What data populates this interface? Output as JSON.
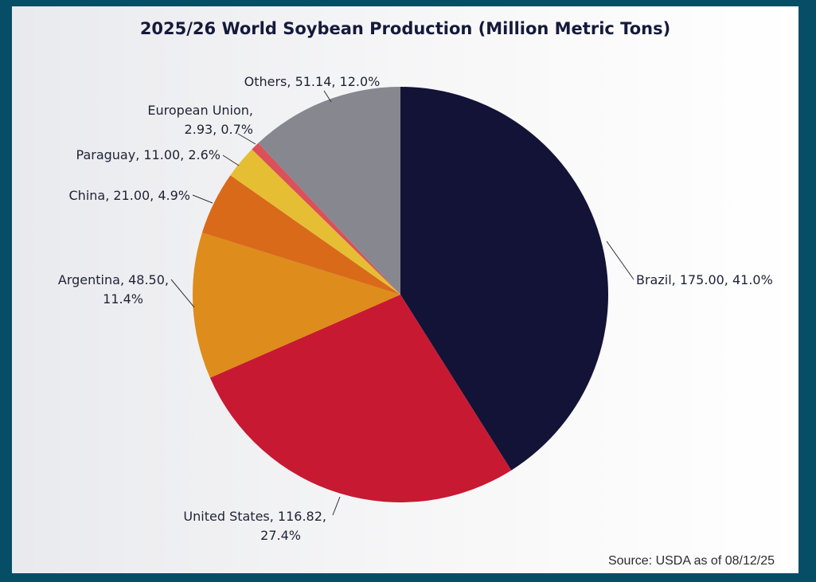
{
  "chart_data": {
    "type": "pie",
    "title": "2025/26 World Soybean Production (Million Metric Tons)",
    "source": "Source: USDA as of 08/12/25",
    "start_angle_deg": 0,
    "direction": "clockwise",
    "slices": [
      {
        "name": "Brazil",
        "value": 175.0,
        "percent": 41.0,
        "color": "#131338",
        "label_lines": [
          "Brazil, 175.00, 41.0%"
        ]
      },
      {
        "name": "United States",
        "value": 116.82,
        "percent": 27.4,
        "color": "#c81932",
        "label_lines": [
          "United States, 116.82,",
          "27.4%"
        ]
      },
      {
        "name": "Argentina",
        "value": 48.5,
        "percent": 11.4,
        "color": "#de8c1b",
        "label_lines": [
          "Argentina, 48.50,",
          "11.4%"
        ]
      },
      {
        "name": "China",
        "value": 21.0,
        "percent": 4.9,
        "color": "#d86a1a",
        "label_lines": [
          "China, 21.00, 4.9%"
        ]
      },
      {
        "name": "Paraguay",
        "value": 11.0,
        "percent": 2.6,
        "color": "#e5be34",
        "label_lines": [
          "Paraguay, 11.00, 2.6%"
        ]
      },
      {
        "name": "European Union",
        "value": 2.93,
        "percent": 0.7,
        "color": "#db5059",
        "label_lines": [
          "European Union,",
          "2.93, 0.7%"
        ]
      },
      {
        "name": "Others",
        "value": 51.14,
        "percent": 12.0,
        "color": "#87878f",
        "label_lines": [
          "Others, 51.14, 12.0%"
        ]
      }
    ]
  }
}
